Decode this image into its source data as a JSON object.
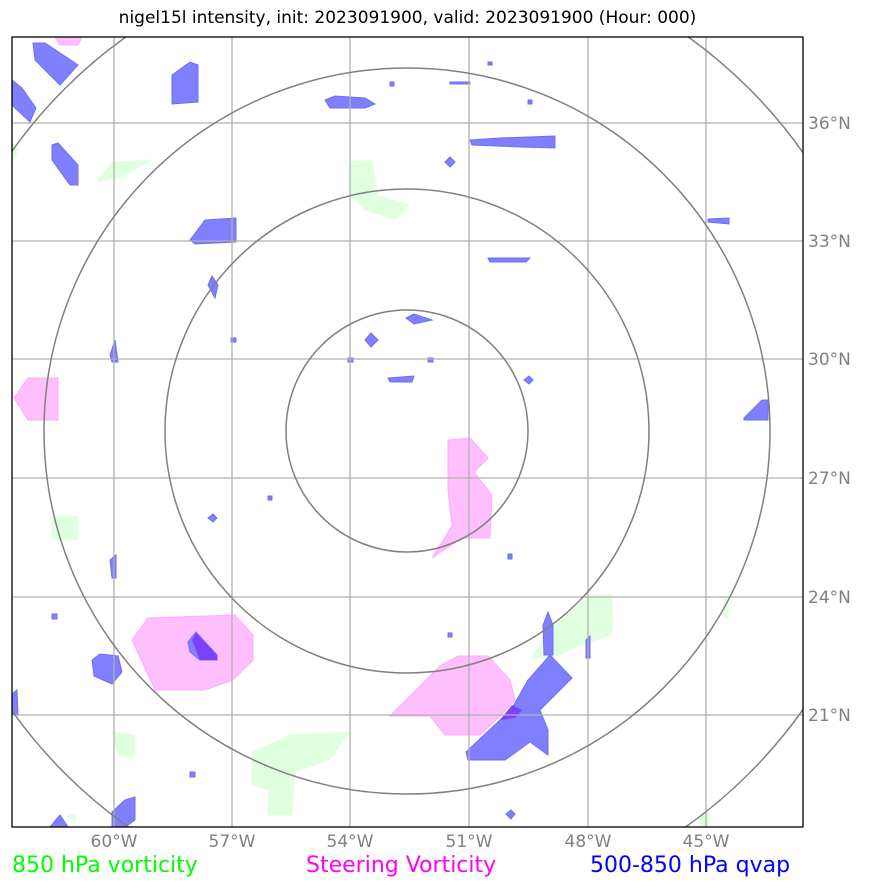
{
  "title": "nigel15l intensity, init: 2023091900, valid: 2023091900 (Hour: 000)",
  "legend": {
    "vort850": "850 hPa vorticity",
    "steering": "Steering Vorticity",
    "qvap": "500-850 hPa qvap"
  },
  "colors": {
    "vort850": "#00ff00",
    "steering": "#ff00ff",
    "qvap": "#0000ff",
    "vort850_fill": "#dfffdf",
    "steering_fill": "#ffbfff",
    "qvap_fill": "#7f7fff",
    "overlap_fill": "#7f3fff",
    "grid": "#b0b0b0",
    "rings": "#808080",
    "tick_labels": "#808080"
  },
  "map": {
    "lon_labels": [
      "60°W",
      "57°W",
      "54°W",
      "51°W",
      "48°W",
      "45°W"
    ],
    "lat_labels": [
      "36°N",
      "33°N",
      "30°N",
      "27°N",
      "24°N",
      "21°N"
    ]
  }
}
